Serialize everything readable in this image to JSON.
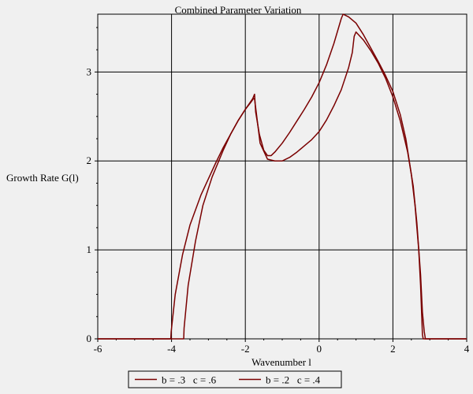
{
  "chart_data": {
    "type": "line",
    "title": "Combined Parameter Variation",
    "xlabel": "Wavenumber l",
    "ylabel": "Growth Rate G(l)",
    "xlim": [
      -6,
      4
    ],
    "ylim": [
      0,
      3.65
    ],
    "grid": true,
    "x_ticks": [
      -6,
      -4,
      -2,
      0,
      2,
      4
    ],
    "x_tick_labels": [
      "-6",
      "-4",
      "-2",
      "0",
      "2",
      "4"
    ],
    "y_ticks": [
      0,
      1,
      2,
      3
    ],
    "y_tick_labels": [
      "0",
      "1",
      "2",
      "3"
    ],
    "legend_position": "bottom",
    "colors": {
      "series": "#7a0000",
      "grid": "#000000",
      "background": "#f0f0f0"
    },
    "series": [
      {
        "name": "b = .3   c = .6",
        "x": [
          -6,
          -4.02,
          -4.01,
          -3.9,
          -3.7,
          -3.5,
          -3.2,
          -3.0,
          -2.8,
          -2.6,
          -2.4,
          -2.2,
          -2.0,
          -1.8,
          -1.75,
          -1.72,
          -1.62,
          -1.5,
          -1.4,
          -1.3,
          -1.2,
          -1.0,
          -0.8,
          -0.6,
          -0.4,
          -0.2,
          0.0,
          0.2,
          0.4,
          0.6,
          0.65,
          0.8,
          1.0,
          1.2,
          1.4,
          1.6,
          1.8,
          2.0,
          2.2,
          2.35,
          2.5,
          2.6,
          2.7,
          2.75,
          2.8,
          2.82,
          4
        ],
        "y": [
          0,
          0,
          0.08,
          0.5,
          0.95,
          1.28,
          1.62,
          1.8,
          1.98,
          2.15,
          2.3,
          2.45,
          2.58,
          2.7,
          2.75,
          2.55,
          2.3,
          2.12,
          2.06,
          2.06,
          2.1,
          2.2,
          2.32,
          2.45,
          2.58,
          2.72,
          2.88,
          3.08,
          3.32,
          3.6,
          3.65,
          3.62,
          3.55,
          3.42,
          3.27,
          3.12,
          2.96,
          2.78,
          2.52,
          2.25,
          1.85,
          1.5,
          1.0,
          0.6,
          0.05,
          0,
          0
        ]
      },
      {
        "name": "b = .2   c = .4",
        "x": [
          -6,
          -3.67,
          -3.66,
          -3.55,
          -3.35,
          -3.15,
          -2.9,
          -2.6,
          -2.4,
          -2.2,
          -2.0,
          -1.85,
          -1.78,
          -1.75,
          -1.6,
          -1.4,
          -1.2,
          -1.0,
          -0.8,
          -0.6,
          -0.4,
          -0.2,
          0.0,
          0.2,
          0.4,
          0.6,
          0.8,
          0.9,
          0.95,
          1.0,
          1.2,
          1.4,
          1.6,
          1.8,
          2.0,
          2.2,
          2.4,
          2.55,
          2.65,
          2.75,
          2.8,
          2.85,
          2.88,
          2.9,
          4
        ],
        "y": [
          0,
          0,
          0.12,
          0.6,
          1.1,
          1.5,
          1.82,
          2.12,
          2.3,
          2.45,
          2.58,
          2.66,
          2.7,
          2.7,
          2.2,
          2.02,
          2.0,
          2.0,
          2.04,
          2.1,
          2.17,
          2.24,
          2.33,
          2.46,
          2.62,
          2.8,
          3.05,
          3.22,
          3.4,
          3.45,
          3.36,
          3.24,
          3.1,
          2.93,
          2.72,
          2.45,
          2.1,
          1.72,
          1.3,
          0.72,
          0.3,
          0.08,
          0,
          0,
          0
        ]
      }
    ]
  }
}
